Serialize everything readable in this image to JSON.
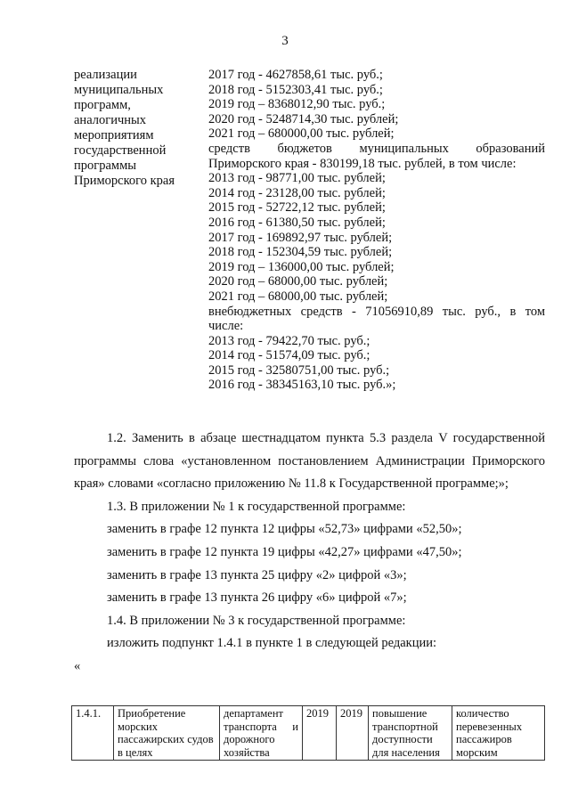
{
  "page_number": "3",
  "left_column": [
    "реализации",
    "муниципальных",
    "программ,",
    "аналогичных",
    "мероприятиям",
    "государственной",
    "программы",
    "Приморского края"
  ],
  "right_column": [
    "2017 год - 4627858,61 тыс. руб.;",
    "2018 год - 5152303,41 тыс. руб.;",
    "2019 год – 8368012,90 тыс. руб.;",
    "2020 год - 5248714,30 тыс. рублей;",
    "2021 год – 680000,00 тыс. рублей;",
    "средств бюджетов муниципальных образований",
    "Приморского края - 830199,18 тыс. рублей, в том числе:",
    "2013 год - 98771,00 тыс. рублей;",
    "2014 год - 23128,00 тыс. рублей;",
    "2015 год - 52722,12 тыс. рублей;",
    "2016 год - 61380,50 тыс. рублей;",
    "2017 год - 169892,97 тыс. рублей;",
    "2018 год - 152304,59 тыс. рублей;",
    "2019 год – 136000,00 тыс. рублей;",
    "2020 год – 68000,00 тыс. рублей;",
    "2021 год – 68000,00 тыс. рублей;",
    "внебюджетных средств - 71056910,89 тыс. руб., в том",
    "числе:",
    "2013 год - 79422,70 тыс. руб.;",
    "2014 год - 51574,09 тыс. руб.;",
    "2015 год - 32580751,00 тыс. руб.;",
    "2016 год - 38345163,10 тыс. руб.»;"
  ],
  "paragraphs": {
    "p12": "1.2. Заменить в абзаце шестнадцатом пункта 5.3 раздела V государственной программы слова «установленном постановлением Администрации Приморского края» словами «согласно приложению № 11.8 к Государственной программе;»;",
    "p13": "1.3. В приложении № 1 к государственной программе:",
    "p13a": "заменить в графе 12 пункта 12 цифры «52,73» цифрами «52,50»;",
    "p13b": "заменить в графе 12 пункта 19 цифры «42,27» цифрами «47,50»;",
    "p13c": "заменить в графе 13 пункта 25 цифру «2» цифрой «3»;",
    "p13d": "заменить в графе 13 пункта 26 цифру «6» цифрой «7»;",
    "p14": "1.4. В приложении № 3 к государственной программе:",
    "p14a": "изложить подпункт 1.4.1 в пункте 1 в следующей редакции:",
    "quote": "«"
  },
  "table": {
    "row": [
      "1.4.1.",
      "Приобретение морских пассажирских судов в целях",
      "департамент транспорта и дорожного хозяйства",
      "2019",
      "2019",
      "повышение транспортной доступности для населения",
      "количество перевезенных пассажиров морским"
    ]
  }
}
